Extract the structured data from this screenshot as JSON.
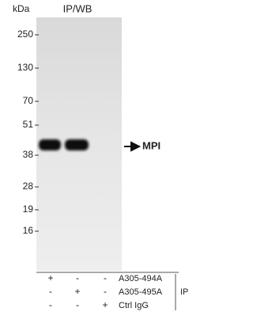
{
  "title": "IP/WB",
  "unit": "kDa",
  "markers": [
    "250",
    "130",
    "70",
    "51",
    "38",
    "28",
    "19",
    "16"
  ],
  "band_label": "MPI",
  "table": {
    "group_label": "IP",
    "rows": [
      {
        "label": "A305-494A",
        "cells": [
          "+",
          "-",
          "-"
        ]
      },
      {
        "label": "A305-495A",
        "cells": [
          "-",
          "+",
          "-"
        ]
      },
      {
        "label": "Ctrl IgG",
        "cells": [
          "-",
          "-",
          "+"
        ]
      }
    ]
  }
}
